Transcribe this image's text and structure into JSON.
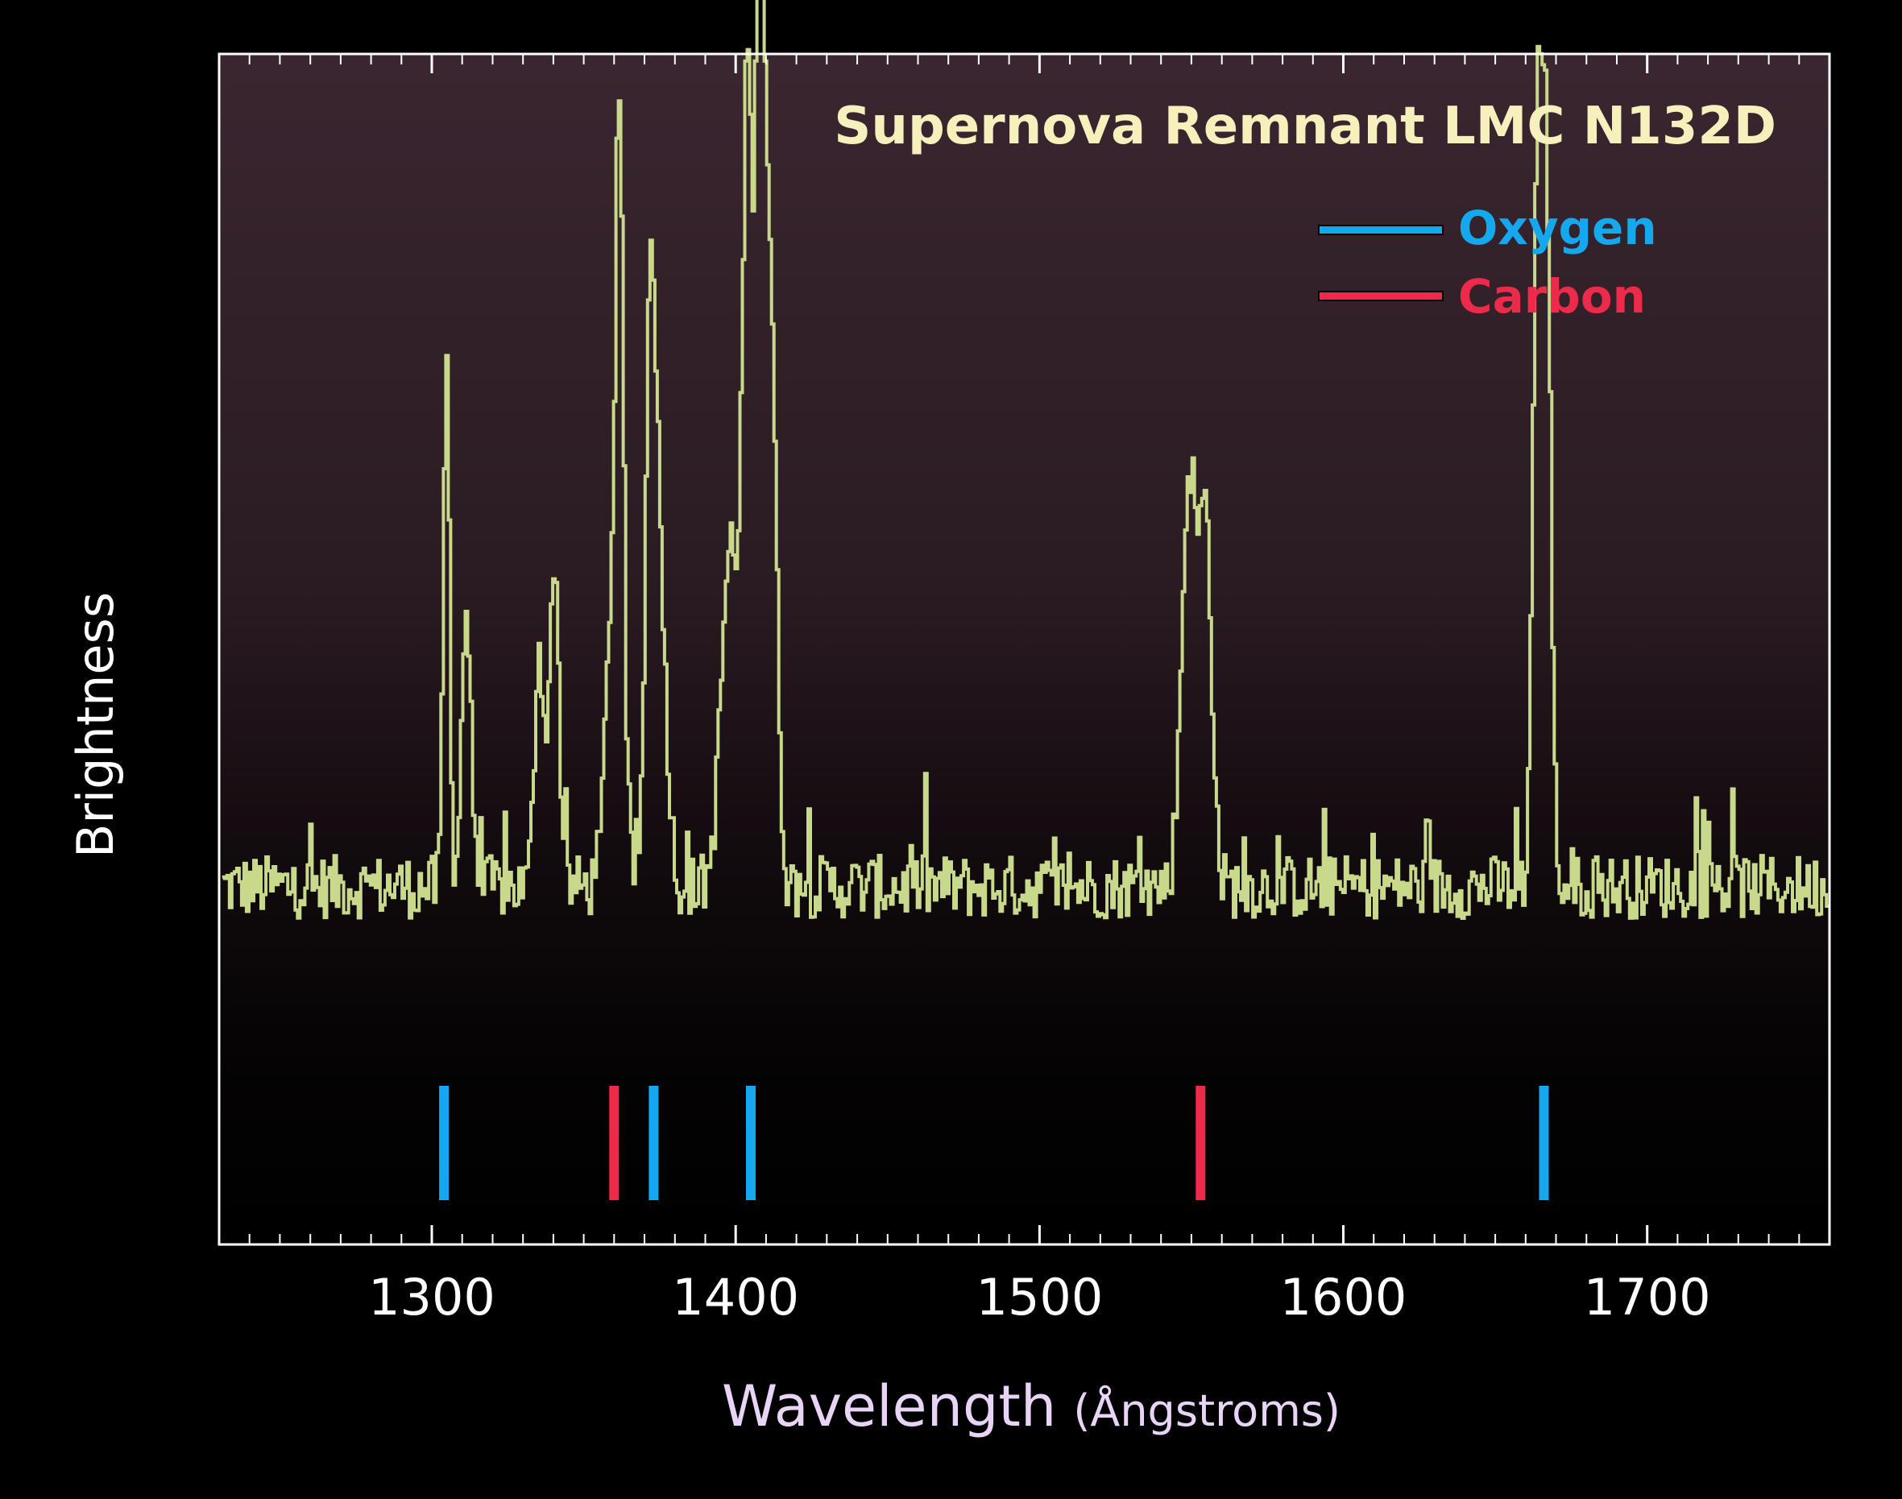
{
  "chart_data": {
    "type": "line",
    "title": "Supernova Remnant LMC N132D",
    "xlabel_main": "Wavelength",
    "xlabel_unit": "(Ångstroms)",
    "ylabel": "Brightness",
    "xlim": [
      1230,
      1760
    ],
    "ylim": [
      0,
      100
    ],
    "x_ticks": [
      1300,
      1400,
      1500,
      1600,
      1700
    ],
    "grid": false,
    "legend_position": "top-right",
    "legend": [
      {
        "label": "Oxygen",
        "color": "#16a8ee"
      },
      {
        "label": "Carbon",
        "color": "#ee2a4a"
      }
    ],
    "spectrum": {
      "color": "#c9d98c",
      "baseline": 20,
      "peaks": [
        {
          "x": 1304.5,
          "y": 59,
          "width": 1.0
        },
        {
          "x": 1311,
          "y": 31,
          "width": 1.5
        },
        {
          "x": 1335,
          "y": 27,
          "width": 1.5
        },
        {
          "x": 1340,
          "y": 37,
          "width": 1.5
        },
        {
          "x": 1360,
          "y": 41,
          "width": 2.5
        },
        {
          "x": 1361.5,
          "y": 55,
          "width": 1.0
        },
        {
          "x": 1371.5,
          "y": 47,
          "width": 1.5
        },
        {
          "x": 1374,
          "y": 40,
          "width": 2.5
        },
        {
          "x": 1398,
          "y": 38,
          "width": 3.0
        },
        {
          "x": 1403.5,
          "y": 84,
          "width": 1.5
        },
        {
          "x": 1407.5,
          "y": 99,
          "width": 1.5
        },
        {
          "x": 1411,
          "y": 66,
          "width": 2.0
        },
        {
          "x": 1549,
          "y": 46,
          "width": 2.5
        },
        {
          "x": 1554.5,
          "y": 38,
          "width": 2.0
        },
        {
          "x": 1663.5,
          "y": 78,
          "width": 1.5
        },
        {
          "x": 1666.5,
          "y": 74,
          "width": 1.5
        }
      ]
    },
    "element_lines": [
      {
        "element": "Oxygen",
        "x": 1304
      },
      {
        "element": "Carbon",
        "x": 1360
      },
      {
        "element": "Oxygen",
        "x": 1373
      },
      {
        "element": "Oxygen",
        "x": 1405
      },
      {
        "element": "Carbon",
        "x": 1553
      },
      {
        "element": "Oxygen",
        "x": 1666
      }
    ]
  }
}
